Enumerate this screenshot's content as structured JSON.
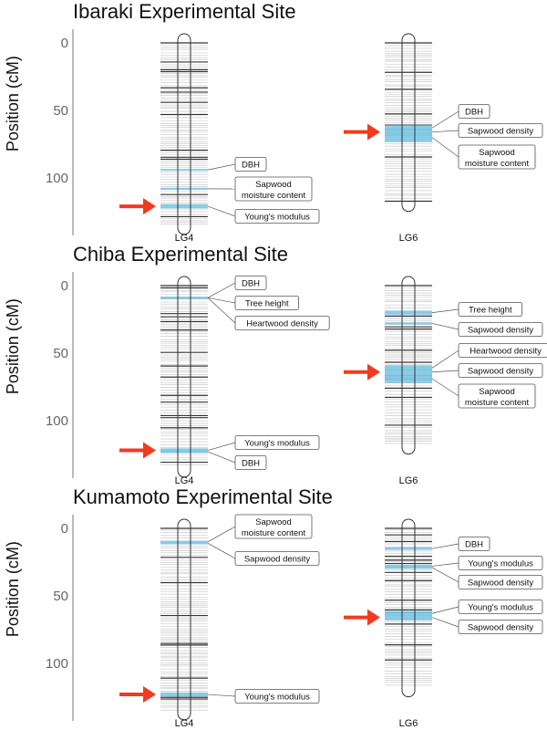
{
  "figure": {
    "y_unit_label": "Position (cM)",
    "colors": {
      "qtl_highlight": "#7ec8e3",
      "arrow": "#f23a1f",
      "marker_dark": "#111111",
      "marker_light": "#9a9a9a",
      "label_box_border": "#555555",
      "axis": "#777777"
    }
  },
  "chart_data": [
    {
      "type": "linkage_map",
      "title": "Ibaraki Experimental Site",
      "ylabel": "Position (cM)",
      "yticks": [
        0,
        50,
        100
      ],
      "ylim": [
        -8,
        136
      ],
      "linkage_groups": [
        {
          "name": "LG4",
          "length_cM": 135,
          "qtls": [
            {
              "trait": "DBH",
              "position": 94,
              "width": 1.2
            },
            {
              "trait": "Sapwood moisture content",
              "position": 108,
              "width": 1.5
            },
            {
              "trait": "Young's modulus",
              "position": 121,
              "width": 3
            }
          ],
          "arrow_at": 121
        },
        {
          "name": "LG6",
          "length_cM": 118,
          "qtls": [
            {
              "trait": "DBH",
              "position": 63,
              "width": 4
            },
            {
              "trait": "Sapwood density",
              "position": 66,
              "width": 6
            },
            {
              "trait": "Sapwood moisture content",
              "position": 70,
              "width": 7
            }
          ],
          "arrow_at": 66
        }
      ]
    },
    {
      "type": "linkage_map",
      "title": "Chiba Experimental Site",
      "ylabel": "Position (cM)",
      "yticks": [
        0,
        50,
        100
      ],
      "ylim": [
        -8,
        136
      ],
      "linkage_groups": [
        {
          "name": "LG4",
          "length_cM": 135,
          "qtls": [
            {
              "trait": "DBH",
              "position": 9,
              "width": 1.5
            },
            {
              "trait": "Tree height",
              "position": 9,
              "width": 1.5
            },
            {
              "trait": "Heartwood density",
              "position": 9,
              "width": 1.5
            },
            {
              "trait": "Young's modulus",
              "position": 122,
              "width": 3
            },
            {
              "trait": "DBH",
              "position": 123,
              "width": 2
            }
          ],
          "arrow_at": 122
        },
        {
          "name": "LG6",
          "length_cM": 118,
          "qtls": [
            {
              "trait": "Tree height",
              "position": 20,
              "width": 3
            },
            {
              "trait": "Sapwood density",
              "position": 28,
              "width": 1.5
            },
            {
              "trait": "Heartwood density",
              "position": 61,
              "width": 4
            },
            {
              "trait": "Sapwood density",
              "position": 64,
              "width": 5
            },
            {
              "trait": "Sapwood moisture content",
              "position": 69,
              "width": 6
            }
          ],
          "arrow_at": 64
        }
      ]
    },
    {
      "type": "linkage_map",
      "title": "Kumamoto Experimental Site",
      "ylabel": "Position (cM)",
      "yticks": [
        0,
        50,
        100
      ],
      "ylim": [
        -8,
        136
      ],
      "linkage_groups": [
        {
          "name": "LG4",
          "length_cM": 135,
          "qtls": [
            {
              "trait": "Sapwood moisture content",
              "position": 10,
              "width": 1.5
            },
            {
              "trait": "Sapwood density",
              "position": 11,
              "width": 1.5
            },
            {
              "trait": "Young's modulus",
              "position": 123,
              "width": 3
            }
          ],
          "arrow_at": 123
        },
        {
          "name": "LG6",
          "length_cM": 118,
          "qtls": [
            {
              "trait": "DBH",
              "position": 15,
              "width": 2
            },
            {
              "trait": "Young's modulus",
              "position": 28,
              "width": 2
            },
            {
              "trait": "Sapwood density",
              "position": 29,
              "width": 2
            },
            {
              "trait": "Young's modulus",
              "position": 63,
              "width": 4
            },
            {
              "trait": "Sapwood density",
              "position": 66,
              "width": 4
            }
          ],
          "arrow_at": 66
        }
      ]
    }
  ]
}
